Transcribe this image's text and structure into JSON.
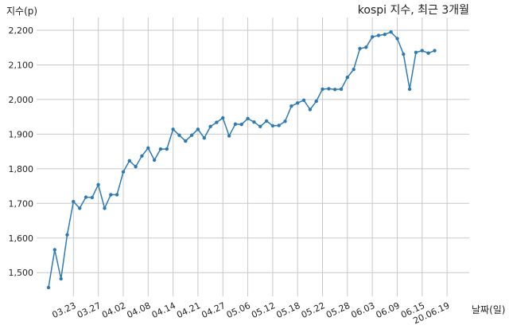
{
  "chart_data": {
    "type": "line",
    "title": "kospi 지수, 최근 3개월",
    "ylabel": "지수(p)",
    "xlabel": "날짜(일)",
    "grid": true,
    "ylim": [
      1440,
      2215
    ],
    "y_ticks": [
      1500,
      1600,
      1700,
      1800,
      1900,
      2000,
      2100,
      2200
    ],
    "y_tick_labels": [
      "1,500",
      "1,600",
      "1,700",
      "1,800",
      "1,900",
      "2,000",
      "2,100",
      "2,200"
    ],
    "x_ticks": [
      {
        "index": 4,
        "label": "03.23"
      },
      {
        "index": 8,
        "label": "03.27"
      },
      {
        "index": 12,
        "label": "04.02"
      },
      {
        "index": 16,
        "label": "04.08"
      },
      {
        "index": 20,
        "label": "04.14"
      },
      {
        "index": 24,
        "label": "04.21"
      },
      {
        "index": 28,
        "label": "04.27"
      },
      {
        "index": 32,
        "label": "05.06"
      },
      {
        "index": 36,
        "label": "05.12"
      },
      {
        "index": 40,
        "label": "05.18"
      },
      {
        "index": 44,
        "label": "05.22"
      },
      {
        "index": 48,
        "label": "05.28"
      },
      {
        "index": 52,
        "label": "06.03"
      },
      {
        "index": 56,
        "label": "06.09"
      },
      {
        "index": 60,
        "label": "06.15"
      },
      {
        "index": 64,
        "label": "20.06.19"
      }
    ],
    "series": [
      {
        "values": [
          1457,
          1566,
          1482,
          1609,
          1705,
          1686,
          1718,
          1717,
          1754,
          1686,
          1725,
          1725,
          1791,
          1823,
          1806,
          1837,
          1860,
          1825,
          1857,
          1857,
          1914,
          1897,
          1880,
          1897,
          1914,
          1889,
          1922,
          1934,
          1947,
          1895,
          1929,
          1928,
          1945,
          1935,
          1922,
          1938,
          1924,
          1925,
          1937,
          1981,
          1990,
          1998,
          1971,
          1995,
          2030,
          2031,
          2029,
          2030,
          2064,
          2087,
          2147,
          2151,
          2181,
          2185,
          2188,
          2195,
          2176,
          2131,
          2030,
          2136,
          2141,
          2134,
          2141
        ]
      }
    ]
  }
}
